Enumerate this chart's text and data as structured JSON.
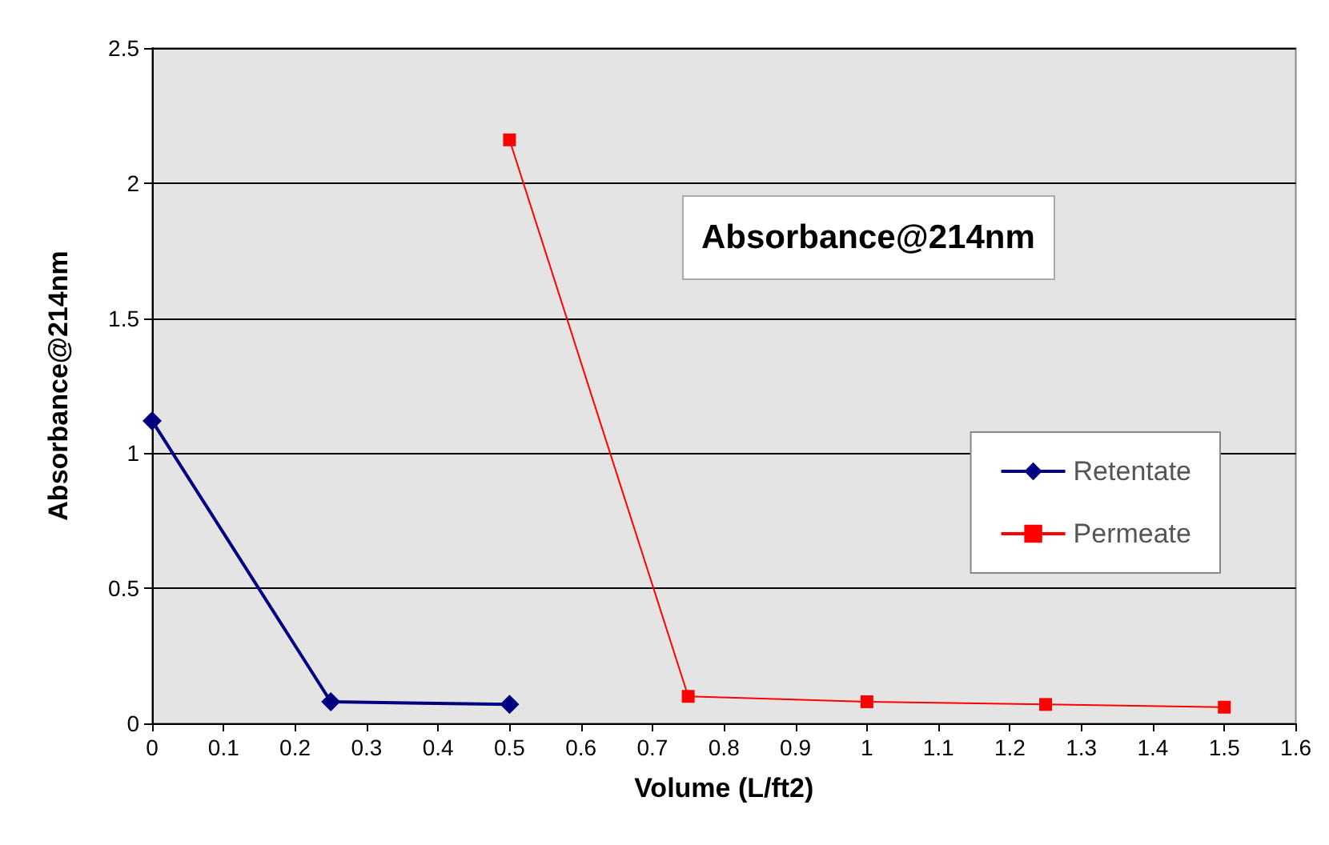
{
  "chart_data": {
    "type": "line",
    "title": "Absorbance@214nm",
    "xlabel": "Volume (L/ft2)",
    "ylabel": "Absorbance@214nm",
    "xlim": [
      0,
      1.6
    ],
    "xticks": [
      0,
      0.1,
      0.2,
      0.3,
      0.4,
      0.5,
      0.6,
      0.7,
      0.8,
      0.9,
      1,
      1.1,
      1.2,
      1.3,
      1.4,
      1.5,
      1.6
    ],
    "ylim": [
      0,
      2.5
    ],
    "yticks": [
      0,
      0.5,
      1,
      1.5,
      2,
      2.5
    ],
    "grid": "y",
    "legend": "right",
    "series": [
      {
        "name": "Retentate",
        "color": "#000080",
        "marker": "diamond",
        "x": [
          0,
          0.25,
          0.5
        ],
        "values": [
          1.12,
          0.08,
          0.07
        ]
      },
      {
        "name": "Permeate",
        "color": "#ff0000",
        "marker": "square",
        "x": [
          0.5,
          0.75,
          1,
          1.25,
          1.5
        ],
        "values": [
          2.16,
          0.1,
          0.08,
          0.07,
          0.06
        ]
      }
    ]
  }
}
